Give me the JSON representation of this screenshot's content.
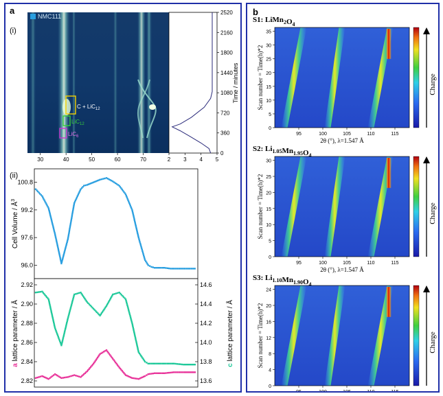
{
  "panel_a": {
    "letter": "a",
    "sub_i": "(i)",
    "sub_ii": "(ii)",
    "sample": "NMC111",
    "annotations": {
      "c_lic12": "C + LiC",
      "c_lic12_sub": "12",
      "lic12": "LiC",
      "lic12_sub": "12",
      "lic6": "LiC",
      "lic6_sub": "6"
    },
    "heatmap_xticks": [
      "30",
      "40",
      "50",
      "60",
      "70"
    ],
    "side_xticks": [
      "2",
      "3",
      "4",
      "5"
    ],
    "time_axis_label": "Time / minutes",
    "time_ticks": [
      "0",
      "360",
      "720",
      "1080",
      "1440",
      "1800",
      "2160",
      "2520"
    ],
    "volume_ylabel": "Cell Volume / Å",
    "volume_ylabel_sup": "3",
    "volume_ticks": [
      "100.8",
      "99.2",
      "97.6",
      "96.0"
    ],
    "a_ylabel_letter": "a",
    "a_ylabel_rest": " lattice parameter / Å",
    "a_ticks": [
      "2.92",
      "2.90",
      "2.88",
      "2.86",
      "2.84",
      "2.82"
    ],
    "c_ylabel_letter": "c",
    "c_ylabel_rest": " lattice parameter / Å",
    "c_ticks": [
      "14.6",
      "14.4",
      "14.2",
      "14.0",
      "13.8",
      "13.6"
    ]
  },
  "panel_b": {
    "letter": "b",
    "charge_label": "Charge",
    "y_axis_label": "Scan number = Time(h)*2",
    "x_axis_label": "2θ (°), λ=1.547 Å",
    "plots": [
      {
        "label_pre": "S1: LiMn",
        "sub1": "2",
        "mid": "O",
        "sub2": "4",
        "post": "",
        "yticks": [
          "0",
          "5",
          "10",
          "15",
          "20",
          "25",
          "30",
          "35"
        ],
        "xticks": [
          "95",
          "100",
          "105",
          "110",
          "115"
        ]
      },
      {
        "label_pre": "S2: Li",
        "sub1": "1.05",
        "mid": "Mn",
        "sub2": "1.95",
        "post": "O",
        "sub3": "4",
        "yticks": [
          "0",
          "5",
          "10",
          "15",
          "20",
          "25",
          "30"
        ],
        "xticks": [
          "95",
          "100",
          "105",
          "110",
          "115"
        ]
      },
      {
        "label_pre": "S3: Li",
        "sub1": "1.10",
        "mid": "Mn",
        "sub2": "1.90",
        "post": "O",
        "sub3": "4",
        "yticks": [
          "0",
          "4",
          "8",
          "12",
          "16",
          "20",
          "24"
        ],
        "xticks": [
          "95",
          "100",
          "105",
          "110",
          "115"
        ]
      }
    ]
  },
  "colors": {
    "border": "#1f2fa8",
    "volume": "#2a9fe0",
    "a_param": "#e8349a",
    "c_param": "#1fc99a",
    "charge_arrow": "#000000"
  },
  "chart_data": [
    {
      "type": "line",
      "ylabel": "Cell Volume / Å3",
      "ylim": [
        95.3,
        101.5
      ],
      "x": [
        0,
        0.04,
        0.08,
        0.12,
        0.16,
        0.2,
        0.24,
        0.28,
        0.3,
        0.32,
        0.36,
        0.4,
        0.44,
        0.48,
        0.52,
        0.56,
        0.6,
        0.64,
        0.68,
        0.7,
        0.72,
        0.74,
        0.76,
        0.8,
        0.84,
        0.88,
        0.92,
        0.96,
        1.0
      ],
      "series": [
        {
          "values": [
            100.4,
            100.0,
            99.3,
            97.8,
            96.1,
            97.5,
            99.6,
            100.4,
            100.6,
            100.65,
            100.8,
            100.95,
            101.05,
            100.85,
            100.6,
            100.1,
            99.2,
            97.6,
            96.3,
            96.0,
            95.9,
            95.85,
            95.85,
            95.85,
            95.8,
            95.8,
            95.8,
            95.8,
            95.8
          ]
        }
      ]
    },
    {
      "type": "line",
      "ylabel": "c lattice parameter / Å",
      "ylim": [
        13.55,
        14.65
      ],
      "x": [
        0,
        0.04,
        0.08,
        0.12,
        0.16,
        0.2,
        0.24,
        0.28,
        0.32,
        0.36,
        0.4,
        0.44,
        0.48,
        0.52,
        0.56,
        0.6,
        0.64,
        0.68,
        0.7,
        0.74,
        0.8,
        0.86,
        0.92,
        1.0
      ],
      "series": [
        {
          "values": [
            14.52,
            14.53,
            14.45,
            14.15,
            13.97,
            14.25,
            14.5,
            14.52,
            14.42,
            14.35,
            14.28,
            14.38,
            14.5,
            14.52,
            14.45,
            14.2,
            13.9,
            13.8,
            13.78,
            13.78,
            13.78,
            13.78,
            13.77,
            13.77
          ]
        }
      ]
    },
    {
      "type": "line",
      "ylabel": "a lattice parameter / Å",
      "ylim": [
        2.815,
        2.925
      ],
      "x": [
        0,
        0.04,
        0.08,
        0.12,
        0.16,
        0.2,
        0.24,
        0.28,
        0.32,
        0.36,
        0.4,
        0.44,
        0.48,
        0.52,
        0.56,
        0.6,
        0.64,
        0.68,
        0.7,
        0.74,
        0.8,
        0.86,
        0.92,
        1.0
      ],
      "series": [
        {
          "values": [
            2.823,
            2.825,
            2.822,
            2.827,
            2.823,
            2.824,
            2.826,
            2.824,
            2.83,
            2.838,
            2.848,
            2.852,
            2.843,
            2.834,
            2.826,
            2.823,
            2.822,
            2.825,
            2.827,
            2.828,
            2.828,
            2.829,
            2.829,
            2.829
          ]
        }
      ]
    }
  ]
}
